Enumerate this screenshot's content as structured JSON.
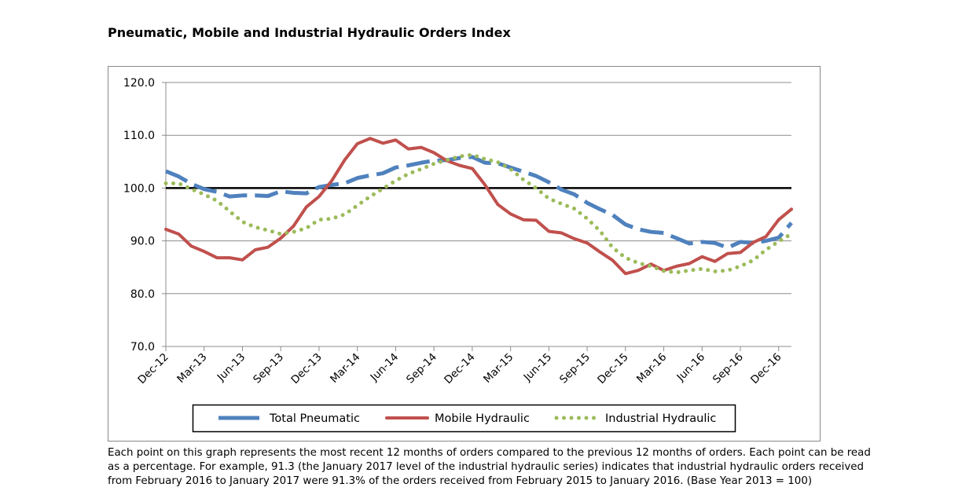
{
  "chart_data": {
    "type": "line",
    "title": "Pneumatic, Mobile and Industrial Hydraulic Orders Index",
    "note": "Each point on this graph represents the most recent 12 months of orders compared to the previous 12 months of orders.  Each point can be read as a percentage.  For example, 91.3 (the January 2017 level of the industrial hydraulic series) indicates that industrial hydraulic orders received from February 2016 to January 2017 were 91.3% of the orders received from February 2015 to January 2016.  (Base Year 2013 = 100)",
    "categories": [
      "Dec-12",
      null,
      null,
      "Mar-13",
      null,
      null,
      "Jun-13",
      null,
      null,
      "Sep-13",
      null,
      null,
      "Dec-13",
      null,
      null,
      "Mar-14",
      null,
      null,
      "Jun-14",
      null,
      null,
      "Sep-14",
      null,
      null,
      "Dec-14",
      null,
      null,
      "Mar-15",
      null,
      null,
      "Jun-15",
      null,
      null,
      "Sep-15",
      null,
      null,
      "Dec-15",
      null,
      null,
      "Mar-16",
      null,
      null,
      "Jun-16",
      null,
      null,
      "Sep-16",
      null,
      null,
      "Dec-16",
      null
    ],
    "series": [
      {
        "name": "Total Pneumatic",
        "color": "#4f81bd",
        "style": "dashed",
        "values": [
          103.2,
          102.2,
          100.8,
          99.8,
          99.3,
          98.4,
          98.6,
          98.6,
          98.5,
          99.4,
          99.1,
          99.0,
          100.2,
          100.6,
          100.9,
          101.9,
          102.4,
          102.8,
          103.9,
          104.3,
          104.8,
          105.2,
          105.3,
          105.7,
          105.9,
          104.8,
          104.7,
          103.9,
          103.1,
          102.3,
          101.1,
          99.7,
          98.8,
          97.2,
          96.0,
          94.9,
          93.1,
          92.2,
          91.7,
          91.5,
          90.5,
          89.5,
          89.8,
          89.6,
          88.7,
          89.8,
          89.6,
          90.0,
          90.6,
          93.4
        ]
      },
      {
        "name": "Mobile Hydraulic",
        "color": "#c0504d",
        "style": "solid",
        "values": [
          92.2,
          91.3,
          89.0,
          88.0,
          86.8,
          86.8,
          86.4,
          88.3,
          88.8,
          90.5,
          92.8,
          96.4,
          98.4,
          101.4,
          105.3,
          108.4,
          109.4,
          108.5,
          109.1,
          107.4,
          107.7,
          106.7,
          105.2,
          104.3,
          103.7,
          100.6,
          96.9,
          95.1,
          94.0,
          93.9,
          91.8,
          91.5,
          90.4,
          89.6,
          87.9,
          86.3,
          83.8,
          84.4,
          85.6,
          84.4,
          85.2,
          85.7,
          87.0,
          86.1,
          87.6,
          87.8,
          89.7,
          90.8,
          94.0,
          96.0
        ]
      },
      {
        "name": "Industrial Hydraulic",
        "color": "#9bbb59",
        "style": "dotted",
        "values": [
          100.9,
          100.9,
          99.8,
          98.8,
          97.6,
          95.6,
          93.6,
          92.6,
          92.0,
          91.3,
          91.7,
          92.4,
          94.0,
          94.2,
          95.0,
          96.7,
          98.4,
          99.9,
          101.4,
          102.7,
          103.6,
          104.6,
          105.3,
          106.0,
          106.3,
          105.5,
          104.9,
          103.6,
          101.6,
          100.0,
          98.0,
          97.0,
          96.1,
          94.2,
          91.9,
          88.7,
          86.8,
          85.8,
          85.2,
          84.3,
          84.0,
          84.4,
          84.7,
          84.2,
          84.4,
          85.2,
          86.3,
          88.3,
          89.9,
          91.3
        ]
      }
    ],
    "reference_line": {
      "value": 100,
      "color": "#000000"
    },
    "ylim": [
      70,
      120
    ],
    "yticks": [
      {
        "value": 70,
        "label": "70.0"
      },
      {
        "value": 80,
        "label": "80.0"
      },
      {
        "value": 90,
        "label": "90.0"
      },
      {
        "value": 100,
        "label": "100.0"
      },
      {
        "value": 110,
        "label": "110.0"
      },
      {
        "value": 120,
        "label": "120.0"
      }
    ],
    "grid": true,
    "legend": "bottom"
  }
}
